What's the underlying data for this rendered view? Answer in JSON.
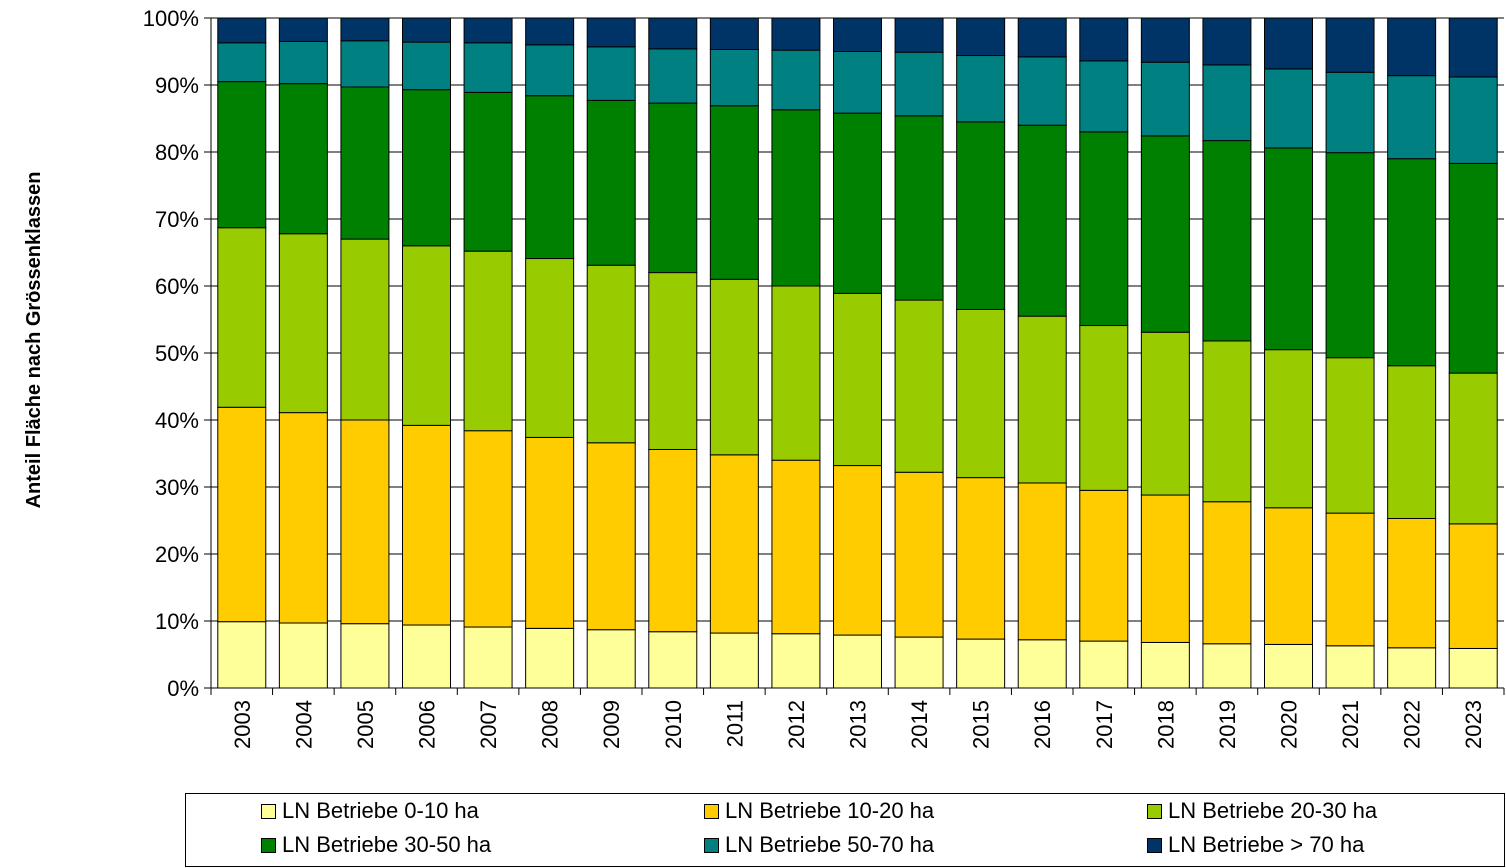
{
  "chart_data": {
    "type": "bar",
    "stacked": "percent",
    "ylabel": "Anteil Fläche nach Grössenklassen",
    "xlabel": "",
    "ylim": [
      0,
      100
    ],
    "yticks": [
      "0%",
      "10%",
      "20%",
      "30%",
      "40%",
      "50%",
      "60%",
      "70%",
      "80%",
      "90%",
      "100%"
    ],
    "grid": "horizontal",
    "legend_position": "bottom",
    "categories": [
      "2003",
      "2004",
      "2005",
      "2006",
      "2007",
      "2008",
      "2009",
      "2010",
      "2011",
      "2012",
      "2013",
      "2014",
      "2015",
      "2016",
      "2017",
      "2018",
      "2019",
      "2020",
      "2021",
      "2022",
      "2023"
    ],
    "series": [
      {
        "name": "LN Betriebe 0-10 ha",
        "color": "#FFFF99",
        "values": [
          9.9,
          9.7,
          9.6,
          9.4,
          9.1,
          8.9,
          8.7,
          8.4,
          8.2,
          8.1,
          7.9,
          7.6,
          7.3,
          7.2,
          7.0,
          6.8,
          6.6,
          6.5,
          6.3,
          6.0,
          5.9
        ]
      },
      {
        "name": "LN Betriebe 10-20 ha",
        "color": "#FFCC00",
        "values": [
          32.0,
          31.4,
          30.4,
          29.8,
          29.3,
          28.5,
          27.9,
          27.2,
          26.6,
          25.9,
          25.3,
          24.6,
          24.1,
          23.4,
          22.5,
          22.0,
          21.2,
          20.4,
          19.8,
          19.3,
          18.6
        ]
      },
      {
        "name": "LN Betriebe 20-30 ha",
        "color": "#99CC00",
        "values": [
          26.8,
          26.7,
          27.0,
          26.8,
          26.8,
          26.7,
          26.5,
          26.4,
          26.2,
          26.0,
          25.7,
          25.7,
          25.1,
          24.9,
          24.6,
          24.3,
          24.0,
          23.6,
          23.2,
          22.8,
          22.5
        ]
      },
      {
        "name": "LN Betriebe 30-50 ha",
        "color": "#008000",
        "values": [
          21.8,
          22.4,
          22.7,
          23.3,
          23.7,
          24.3,
          24.6,
          25.3,
          25.9,
          26.3,
          26.9,
          27.5,
          28.0,
          28.5,
          28.9,
          29.3,
          29.9,
          30.1,
          30.6,
          30.9,
          31.3
        ]
      },
      {
        "name": "LN Betriebe 50-70 ha",
        "color": "#008080",
        "values": [
          5.8,
          6.3,
          6.9,
          7.1,
          7.4,
          7.6,
          8.0,
          8.1,
          8.4,
          8.9,
          9.2,
          9.5,
          9.9,
          10.2,
          10.6,
          11.0,
          11.3,
          11.8,
          12.0,
          12.4,
          12.9
        ]
      },
      {
        "name": "LN Betriebe > 70 ha",
        "color": "#003366",
        "values": [
          3.7,
          3.5,
          3.4,
          3.6,
          3.7,
          4.0,
          4.3,
          4.6,
          4.7,
          4.8,
          5.0,
          5.1,
          5.6,
          5.8,
          6.4,
          6.6,
          7.0,
          7.6,
          8.1,
          8.6,
          8.8
        ]
      }
    ]
  }
}
